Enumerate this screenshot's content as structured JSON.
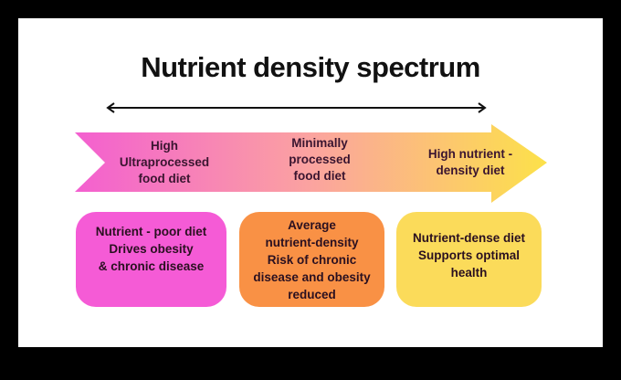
{
  "title": "Nutrient density spectrum",
  "colors": {
    "pink": "#f55bd6",
    "orange": "#f99145",
    "yellow": "#fbdb5a",
    "gradient_mid": "#fba3a0",
    "gradient_end": "#fce14a"
  },
  "arrow_labels": [
    {
      "lines": [
        "High",
        "Ultraprocessed",
        "food diet"
      ]
    },
    {
      "lines": [
        "Minimally",
        "processed",
        "food diet"
      ]
    },
    {
      "lines": [
        "High nutrient -",
        "density diet"
      ]
    }
  ],
  "boxes": [
    {
      "lines": [
        "Nutrient - poor diet",
        "Drives obesity",
        "& chronic disease"
      ]
    },
    {
      "lines": [
        "Average",
        "nutrient-density",
        "Risk of chronic",
        "disease and obesity",
        "reduced"
      ]
    },
    {
      "lines": [
        "Nutrient-dense diet",
        "Supports optimal",
        "health"
      ]
    }
  ]
}
